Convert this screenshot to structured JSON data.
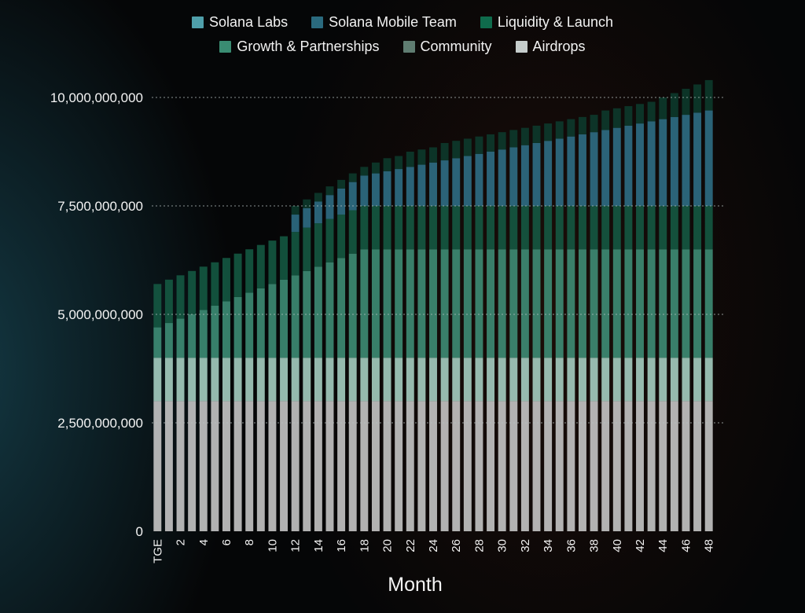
{
  "chart_data": {
    "type": "stacked-bar",
    "xlabel": "Month",
    "ylabel": "",
    "ylim": [
      0,
      10000000000
    ],
    "grid": true,
    "legend_position": "top-center",
    "yticks": [
      {
        "value": 0,
        "label": "0"
      },
      {
        "value": 2500000000,
        "label": "2,500,000,000"
      },
      {
        "value": 5000000000,
        "label": "5,000,000,000"
      },
      {
        "value": 7500000000,
        "label": "7,500,000,000"
      },
      {
        "value": 10000000000,
        "label": "10,000,000,000"
      }
    ],
    "categories": [
      "TGE",
      "1",
      "2",
      "3",
      "4",
      "5",
      "6",
      "7",
      "8",
      "9",
      "10",
      "11",
      "12",
      "13",
      "14",
      "15",
      "16",
      "17",
      "18",
      "19",
      "20",
      "21",
      "22",
      "23",
      "24",
      "25",
      "26",
      "27",
      "28",
      "29",
      "30",
      "31",
      "32",
      "33",
      "34",
      "35",
      "36",
      "37",
      "38",
      "39",
      "40",
      "41",
      "42",
      "43",
      "44",
      "45",
      "46",
      "47",
      "48"
    ],
    "xtick_labels": [
      "TGE",
      "",
      "2",
      "",
      "4",
      "",
      "6",
      "",
      "8",
      "",
      "10",
      "",
      "12",
      "",
      "14",
      "",
      "16",
      "",
      "18",
      "",
      "20",
      "",
      "22",
      "",
      "24",
      "",
      "26",
      "",
      "28",
      "",
      "30",
      "",
      "32",
      "",
      "34",
      "",
      "36",
      "",
      "38",
      "",
      "40",
      "",
      "42",
      "",
      "44",
      "",
      "46",
      "",
      "48"
    ],
    "series": [
      {
        "name": "Airdrops",
        "color": "#c9c9c9",
        "values": [
          3000000000,
          3000000000,
          3000000000,
          3000000000,
          3000000000,
          3000000000,
          3000000000,
          3000000000,
          3000000000,
          3000000000,
          3000000000,
          3000000000,
          3000000000,
          3000000000,
          3000000000,
          3000000000,
          3000000000,
          3000000000,
          3000000000,
          3000000000,
          3000000000,
          3000000000,
          3000000000,
          3000000000,
          3000000000,
          3000000000,
          3000000000,
          3000000000,
          3000000000,
          3000000000,
          3000000000,
          3000000000,
          3000000000,
          3000000000,
          3000000000,
          3000000000,
          3000000000,
          3000000000,
          3000000000,
          3000000000,
          3000000000,
          3000000000,
          3000000000,
          3000000000,
          3000000000,
          3000000000,
          3000000000,
          3000000000,
          3000000000
        ]
      },
      {
        "name": "Community",
        "color": "#a9d3c5",
        "values": [
          1000000000,
          1000000000,
          1000000000,
          1000000000,
          1000000000,
          1000000000,
          1000000000,
          1000000000,
          1000000000,
          1000000000,
          1000000000,
          1000000000,
          1000000000,
          1000000000,
          1000000000,
          1000000000,
          1000000000,
          1000000000,
          1000000000,
          1000000000,
          1000000000,
          1000000000,
          1000000000,
          1000000000,
          1000000000,
          1000000000,
          1000000000,
          1000000000,
          1000000000,
          1000000000,
          1000000000,
          1000000000,
          1000000000,
          1000000000,
          1000000000,
          1000000000,
          1000000000,
          1000000000,
          1000000000,
          1000000000,
          1000000000,
          1000000000,
          1000000000,
          1000000000,
          1000000000,
          1000000000,
          1000000000,
          1000000000,
          1000000000
        ]
      },
      {
        "name": "Growth & Partnerships",
        "color": "#3f8f77",
        "values": [
          700000000,
          800000000,
          900000000,
          1000000000,
          1100000000,
          1200000000,
          1300000000,
          1400000000,
          1500000000,
          1600000000,
          1700000000,
          1800000000,
          1900000000,
          2000000000,
          2100000000,
          2200000000,
          2300000000,
          2400000000,
          2500000000,
          2500000000,
          2500000000,
          2500000000,
          2500000000,
          2500000000,
          2500000000,
          2500000000,
          2500000000,
          2500000000,
          2500000000,
          2500000000,
          2500000000,
          2500000000,
          2500000000,
          2500000000,
          2500000000,
          2500000000,
          2500000000,
          2500000000,
          2500000000,
          2500000000,
          2500000000,
          2500000000,
          2500000000,
          2500000000,
          2500000000,
          2500000000,
          2500000000,
          2500000000,
          2500000000
        ]
      },
      {
        "name": "Liquidity & Launch",
        "color": "#145a43",
        "values": [
          1000000000,
          1000000000,
          1000000000,
          1000000000,
          1000000000,
          1000000000,
          1000000000,
          1000000000,
          1000000000,
          1000000000,
          1000000000,
          1000000000,
          1000000000,
          1000000000,
          1000000000,
          1000000000,
          1000000000,
          1000000000,
          1000000000,
          1000000000,
          1000000000,
          1000000000,
          1000000000,
          1000000000,
          1000000000,
          1000000000,
          1000000000,
          1000000000,
          1000000000,
          1000000000,
          1000000000,
          1000000000,
          1000000000,
          1000000000,
          1000000000,
          1000000000,
          1000000000,
          1000000000,
          1000000000,
          1000000000,
          1000000000,
          1000000000,
          1000000000,
          1000000000,
          1000000000,
          1000000000,
          1000000000,
          1000000000,
          1000000000
        ]
      },
      {
        "name": "Solana Mobile Team",
        "color": "#2f6f88",
        "values": [
          0,
          0,
          0,
          0,
          0,
          0,
          0,
          0,
          0,
          0,
          0,
          0,
          400000000,
          450000000,
          500000000,
          550000000,
          600000000,
          650000000,
          700000000,
          750000000,
          800000000,
          850000000,
          900000000,
          950000000,
          1000000000,
          1050000000,
          1100000000,
          1150000000,
          1200000000,
          1250000000,
          1300000000,
          1350000000,
          1400000000,
          1450000000,
          1500000000,
          1550000000,
          1600000000,
          1650000000,
          1700000000,
          1750000000,
          1800000000,
          1850000000,
          1900000000,
          1950000000,
          2000000000,
          2050000000,
          2100000000,
          2150000000,
          2200000000
        ]
      },
      {
        "name": "Solana Labs",
        "color": "#0c3a2c",
        "values": [
          0,
          0,
          0,
          0,
          0,
          0,
          0,
          0,
          0,
          0,
          0,
          0,
          200000000,
          200000000,
          200000000,
          200000000,
          200000000,
          200000000,
          200000000,
          250000000,
          300000000,
          300000000,
          350000000,
          350000000,
          350000000,
          400000000,
          400000000,
          400000000,
          400000000,
          400000000,
          400000000,
          400000000,
          400000000,
          400000000,
          400000000,
          400000000,
          400000000,
          400000000,
          400000000,
          450000000,
          450000000,
          450000000,
          450000000,
          450000000,
          500000000,
          550000000,
          600000000,
          650000000,
          700000000
        ]
      }
    ]
  },
  "legend": {
    "row1": [
      {
        "label": "Solana Labs",
        "color": "#4f9faa",
        "icon": "square"
      },
      {
        "label": "Solana Mobile Team",
        "color": "#2a6a7e",
        "icon": "square"
      },
      {
        "label": "Liquidity & Launch",
        "color": "#0f6b4c",
        "icon": "square"
      }
    ],
    "row2": [
      {
        "label": "Growth & Partnerships",
        "color": "#3a8c72",
        "icon": "square"
      },
      {
        "label": "Community",
        "color": "#5f7d71",
        "icon": "square"
      },
      {
        "label": "Airdrops",
        "color": "#c6cdcc",
        "icon": "square"
      }
    ]
  }
}
